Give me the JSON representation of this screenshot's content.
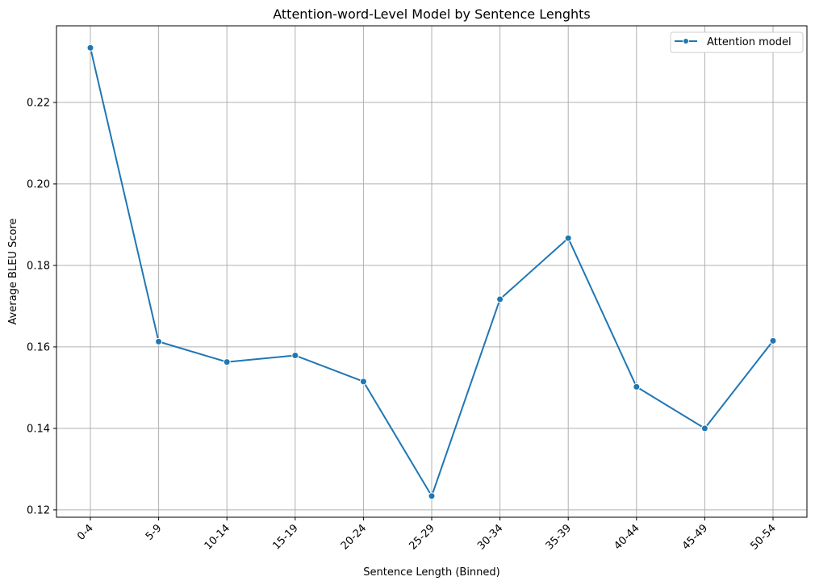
{
  "chart_data": {
    "type": "line",
    "title": "Attention-word-Level Model by Sentence Lenghts",
    "xlabel": "Sentence Length (Binned)",
    "ylabel": "Average BLEU Score",
    "categories": [
      "0-4",
      "5-9",
      "10-14",
      "15-19",
      "20-24",
      "25-29",
      "30-34",
      "35-39",
      "40-44",
      "45-49",
      "50-54"
    ],
    "series": [
      {
        "name": "Attention model",
        "color": "#1f77b4",
        "marker": "circle",
        "values": [
          0.2334,
          0.1613,
          0.1563,
          0.1579,
          0.1515,
          0.1234,
          0.1717,
          0.1867,
          0.1502,
          0.14,
          0.1615
        ]
      }
    ],
    "yticks": [
      "0.12",
      "0.14",
      "0.16",
      "0.18",
      "0.20",
      "0.22"
    ],
    "ylim": [
      0.1182,
      0.2388
    ],
    "grid": true,
    "legend_position": "top-right"
  }
}
